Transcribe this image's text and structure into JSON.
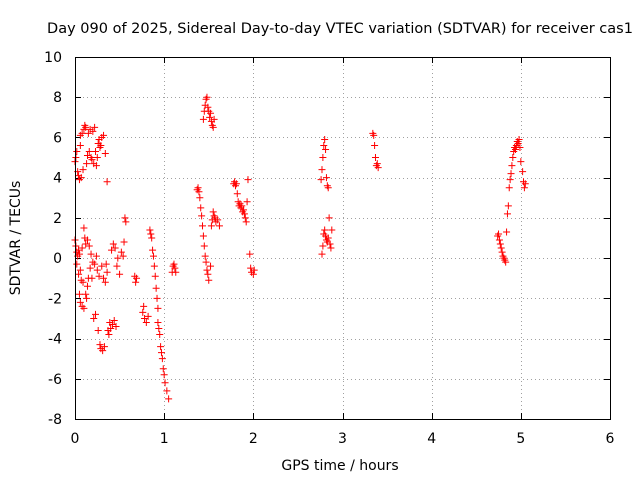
{
  "chart_data": {
    "type": "scatter",
    "title": "Day 090 of 2025, Sidereal Day-to-day VTEC variation (SDTVAR) for receiver cas1",
    "xlabel": "GPS time / hours",
    "ylabel": "SDTVAR / TECUs",
    "xlim": [
      0,
      6
    ],
    "ylim": [
      -8,
      10
    ],
    "xticks": [
      "0",
      "1",
      "2",
      "3",
      "4",
      "5",
      "6"
    ],
    "yticks": [
      "-8",
      "-6",
      "-4",
      "-2",
      "0",
      "2",
      "4",
      "6",
      "8",
      "10"
    ],
    "grid": true,
    "marker": "+",
    "color": "#ff0000",
    "points": [
      [
        0.0,
        4.8
      ],
      [
        0.01,
        5.0
      ],
      [
        0.02,
        5.3
      ],
      [
        0.03,
        4.3
      ],
      [
        0.04,
        4.1
      ],
      [
        0.05,
        3.9
      ],
      [
        0.06,
        5.6
      ],
      [
        0.06,
        6.1
      ],
      [
        0.07,
        4.0
      ],
      [
        0.08,
        6.2
      ],
      [
        0.09,
        4.4
      ],
      [
        0.1,
        6.4
      ],
      [
        0.11,
        6.6
      ],
      [
        0.12,
        6.5
      ],
      [
        0.13,
        4.7
      ],
      [
        0.14,
        5.1
      ],
      [
        0.15,
        6.2
      ],
      [
        0.16,
        5.3
      ],
      [
        0.17,
        6.4
      ],
      [
        0.18,
        5.0
      ],
      [
        0.19,
        4.9
      ],
      [
        0.2,
        6.3
      ],
      [
        0.21,
        4.7
      ],
      [
        0.22,
        6.5
      ],
      [
        0.23,
        5.3
      ],
      [
        0.24,
        4.6
      ],
      [
        0.25,
        5.0
      ],
      [
        0.26,
        5.7
      ],
      [
        0.27,
        5.9
      ],
      [
        0.28,
        5.5
      ],
      [
        0.29,
        5.6
      ],
      [
        0.3,
        6.0
      ],
      [
        0.32,
        6.1
      ],
      [
        0.34,
        5.2
      ],
      [
        0.36,
        3.8
      ],
      [
        0.0,
        0.9
      ],
      [
        0.01,
        0.6
      ],
      [
        0.02,
        0.3
      ],
      [
        0.02,
        -0.3
      ],
      [
        0.03,
        0.1
      ],
      [
        0.04,
        0.4
      ],
      [
        0.04,
        -0.8
      ],
      [
        0.05,
        0.2
      ],
      [
        0.05,
        -1.8
      ],
      [
        0.06,
        -0.6
      ],
      [
        0.06,
        -2.2
      ],
      [
        0.07,
        -1.1
      ],
      [
        0.08,
        -2.4
      ],
      [
        0.08,
        0.5
      ],
      [
        0.09,
        -1.2
      ],
      [
        0.1,
        -2.5
      ],
      [
        0.1,
        1.5
      ],
      [
        0.11,
        1.0
      ],
      [
        0.12,
        -1.8
      ],
      [
        0.12,
        0.7
      ],
      [
        0.13,
        -2.0
      ],
      [
        0.14,
        0.9
      ],
      [
        0.14,
        -1.4
      ],
      [
        0.15,
        -1.0
      ],
      [
        0.16,
        0.6
      ],
      [
        0.17,
        -0.5
      ],
      [
        0.18,
        0.2
      ],
      [
        0.19,
        -1.0
      ],
      [
        0.2,
        -0.2
      ],
      [
        0.21,
        -3.0
      ],
      [
        0.22,
        -0.3
      ],
      [
        0.23,
        -2.8
      ],
      [
        0.24,
        0.1
      ],
      [
        0.25,
        -0.6
      ],
      [
        0.26,
        -3.6
      ],
      [
        0.27,
        -0.9
      ],
      [
        0.28,
        -4.3
      ],
      [
        0.29,
        -4.5
      ],
      [
        0.3,
        -0.4
      ],
      [
        0.31,
        -4.6
      ],
      [
        0.32,
        -1.0
      ],
      [
        0.33,
        -4.4
      ],
      [
        0.34,
        -1.2
      ],
      [
        0.35,
        -0.3
      ],
      [
        0.36,
        -0.7
      ],
      [
        0.37,
        -3.6
      ],
      [
        0.38,
        -3.8
      ],
      [
        0.39,
        -3.2
      ],
      [
        0.4,
        -3.5
      ],
      [
        0.41,
        0.4
      ],
      [
        0.42,
        -3.3
      ],
      [
        0.43,
        0.7
      ],
      [
        0.44,
        -3.1
      ],
      [
        0.45,
        0.5
      ],
      [
        0.46,
        -3.4
      ],
      [
        0.47,
        -0.4
      ],
      [
        0.48,
        0.0
      ],
      [
        0.5,
        -0.8
      ],
      [
        0.52,
        0.3
      ],
      [
        0.54,
        0.1
      ],
      [
        0.55,
        0.8
      ],
      [
        0.56,
        2.0
      ],
      [
        0.57,
        1.8
      ],
      [
        0.67,
        -0.9
      ],
      [
        0.68,
        -1.2
      ],
      [
        0.69,
        -1.0
      ],
      [
        0.76,
        -2.7
      ],
      [
        0.77,
        -2.4
      ],
      [
        0.78,
        -3.0
      ],
      [
        0.8,
        -3.2
      ],
      [
        0.82,
        -2.9
      ],
      [
        0.84,
        1.4
      ],
      [
        0.85,
        1.2
      ],
      [
        0.86,
        1.0
      ],
      [
        0.87,
        0.4
      ],
      [
        0.88,
        0.1
      ],
      [
        0.89,
        -0.4
      ],
      [
        0.9,
        -0.9
      ],
      [
        0.91,
        -1.5
      ],
      [
        0.92,
        -2.0
      ],
      [
        0.93,
        -2.5
      ],
      [
        0.93,
        -3.2
      ],
      [
        0.94,
        -3.5
      ],
      [
        0.95,
        -3.8
      ],
      [
        0.96,
        -4.4
      ],
      [
        0.97,
        -4.7
      ],
      [
        0.98,
        -5.0
      ],
      [
        0.99,
        -5.5
      ],
      [
        1.0,
        -5.8
      ],
      [
        1.01,
        -6.2
      ],
      [
        1.03,
        -6.6
      ],
      [
        1.05,
        -7.0
      ],
      [
        1.09,
        -0.7
      ],
      [
        1.1,
        -0.4
      ],
      [
        1.11,
        -0.3
      ],
      [
        1.12,
        -0.5
      ],
      [
        1.13,
        -0.7
      ],
      [
        1.37,
        3.4
      ],
      [
        1.38,
        3.5
      ],
      [
        1.39,
        3.3
      ],
      [
        1.4,
        3.0
      ],
      [
        1.41,
        2.5
      ],
      [
        1.42,
        2.1
      ],
      [
        1.43,
        1.6
      ],
      [
        1.44,
        1.1
      ],
      [
        1.45,
        0.6
      ],
      [
        1.46,
        0.1
      ],
      [
        1.47,
        -0.2
      ],
      [
        1.48,
        -0.6
      ],
      [
        1.49,
        -0.8
      ],
      [
        1.5,
        -1.1
      ],
      [
        1.52,
        -0.4
      ],
      [
        1.44,
        6.9
      ],
      [
        1.45,
        7.3
      ],
      [
        1.46,
        7.6
      ],
      [
        1.47,
        7.9
      ],
      [
        1.48,
        8.0
      ],
      [
        1.49,
        7.5
      ],
      [
        1.5,
        7.3
      ],
      [
        1.51,
        7.0
      ],
      [
        1.52,
        7.2
      ],
      [
        1.53,
        6.8
      ],
      [
        1.54,
        6.6
      ],
      [
        1.55,
        6.5
      ],
      [
        1.56,
        6.9
      ],
      [
        1.53,
        1.6
      ],
      [
        1.54,
        1.9
      ],
      [
        1.55,
        2.3
      ],
      [
        1.56,
        2.1
      ],
      [
        1.57,
        2.0
      ],
      [
        1.58,
        1.8
      ],
      [
        1.6,
        1.9
      ],
      [
        1.62,
        1.6
      ],
      [
        1.78,
        3.7
      ],
      [
        1.79,
        3.8
      ],
      [
        1.8,
        3.6
      ],
      [
        1.81,
        3.7
      ],
      [
        1.82,
        3.2
      ],
      [
        1.83,
        2.8
      ],
      [
        1.84,
        2.6
      ],
      [
        1.85,
        2.7
      ],
      [
        1.86,
        2.5
      ],
      [
        1.87,
        2.6
      ],
      [
        1.88,
        2.3
      ],
      [
        1.89,
        2.4
      ],
      [
        1.9,
        2.2
      ],
      [
        1.91,
        2.0
      ],
      [
        1.92,
        1.8
      ],
      [
        1.93,
        2.8
      ],
      [
        1.94,
        3.9
      ],
      [
        1.96,
        0.2
      ],
      [
        1.97,
        -0.5
      ],
      [
        1.98,
        -0.7
      ],
      [
        2.0,
        -0.8
      ],
      [
        2.01,
        -0.6
      ],
      [
        2.76,
        3.9
      ],
      [
        2.77,
        4.4
      ],
      [
        2.78,
        5.0
      ],
      [
        2.79,
        5.6
      ],
      [
        2.8,
        5.9
      ],
      [
        2.81,
        5.4
      ],
      [
        2.82,
        4.0
      ],
      [
        2.83,
        3.6
      ],
      [
        2.84,
        3.5
      ],
      [
        2.77,
        0.2
      ],
      [
        2.78,
        0.6
      ],
      [
        2.79,
        1.2
      ],
      [
        2.8,
        1.4
      ],
      [
        2.81,
        1.1
      ],
      [
        2.82,
        0.9
      ],
      [
        2.83,
        0.8
      ],
      [
        2.84,
        1.0
      ],
      [
        2.85,
        2.0
      ],
      [
        2.86,
        0.7
      ],
      [
        2.87,
        0.5
      ],
      [
        2.88,
        1.4
      ],
      [
        3.34,
        6.2
      ],
      [
        3.35,
        6.1
      ],
      [
        3.36,
        5.6
      ],
      [
        3.37,
        5.0
      ],
      [
        3.38,
        4.6
      ],
      [
        3.39,
        4.7
      ],
      [
        3.4,
        4.5
      ],
      [
        4.74,
        1.1
      ],
      [
        4.75,
        1.2
      ],
      [
        4.76,
        0.9
      ],
      [
        4.77,
        0.7
      ],
      [
        4.78,
        0.5
      ],
      [
        4.79,
        0.3
      ],
      [
        4.8,
        0.1
      ],
      [
        4.81,
        0.0
      ],
      [
        4.82,
        -0.1
      ],
      [
        4.83,
        -0.2
      ],
      [
        4.84,
        1.3
      ],
      [
        4.85,
        2.2
      ],
      [
        4.86,
        2.6
      ],
      [
        4.87,
        3.5
      ],
      [
        4.88,
        3.9
      ],
      [
        4.89,
        4.2
      ],
      [
        4.9,
        4.6
      ],
      [
        4.91,
        5.0
      ],
      [
        4.92,
        5.3
      ],
      [
        4.93,
        5.5
      ],
      [
        4.94,
        5.4
      ],
      [
        4.95,
        5.6
      ],
      [
        4.96,
        5.8
      ],
      [
        4.97,
        5.7
      ],
      [
        4.98,
        5.9
      ],
      [
        4.99,
        5.5
      ],
      [
        5.0,
        4.8
      ],
      [
        5.02,
        4.3
      ],
      [
        5.03,
        3.8
      ],
      [
        5.04,
        3.5
      ],
      [
        5.05,
        3.7
      ]
    ]
  }
}
